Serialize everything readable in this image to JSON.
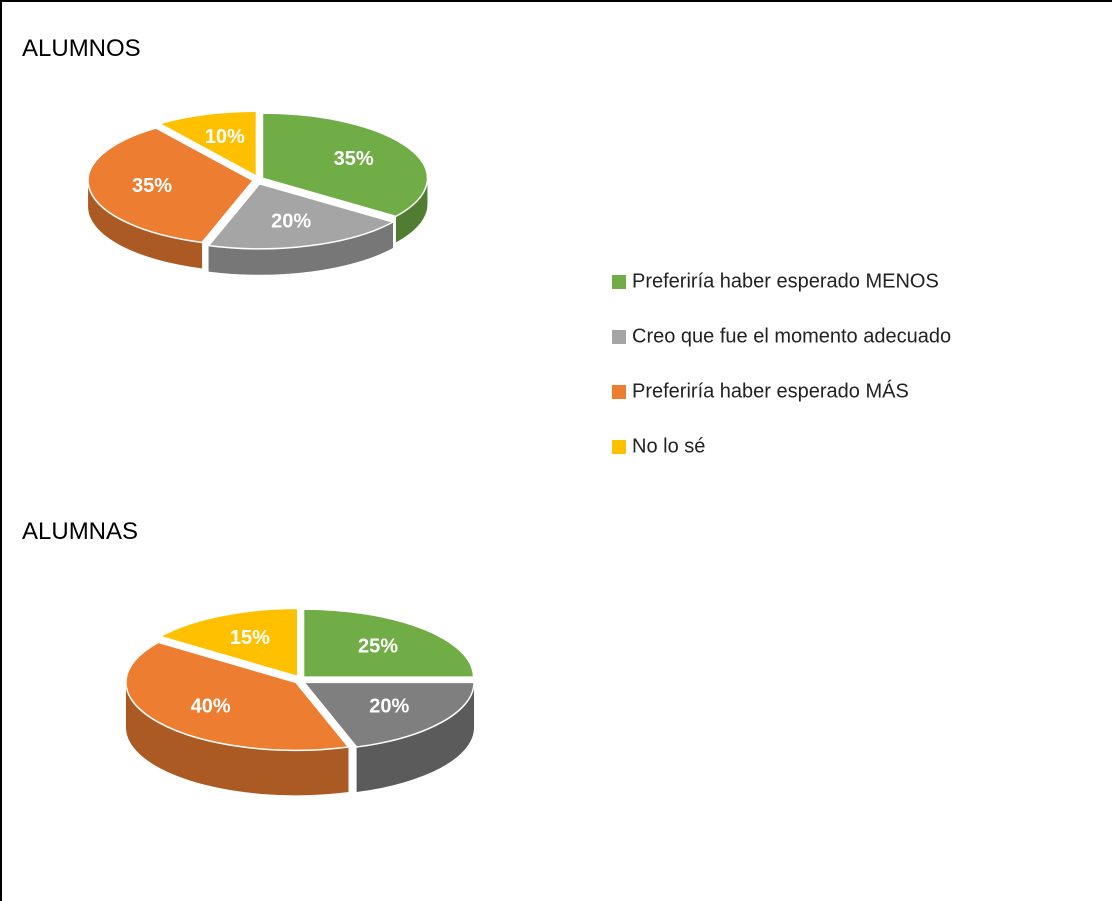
{
  "chart_data": [
    {
      "type": "pie",
      "title": "ALUMNOS",
      "categories": [
        "Preferiría haber esperado MENOS",
        "Creo que fue el momento adecuado",
        "Preferiría haber esperado MÁS",
        "No lo sé"
      ],
      "values": [
        35,
        20,
        35,
        10
      ],
      "value_labels": [
        "35%",
        "20%",
        "35%",
        "10%"
      ],
      "colors": [
        "#70ad47",
        "#a5a5a5",
        "#ed7d31",
        "#ffc000"
      ]
    },
    {
      "type": "pie",
      "title": "ALUMNAS",
      "values": [
        25,
        20,
        40,
        15
      ],
      "value_labels": [
        "25%",
        "20%",
        "40%",
        "15%"
      ],
      "colors": [
        "#70ad47",
        "#7f7f7f",
        "#ed7d31",
        "#ffc000"
      ]
    }
  ]
}
